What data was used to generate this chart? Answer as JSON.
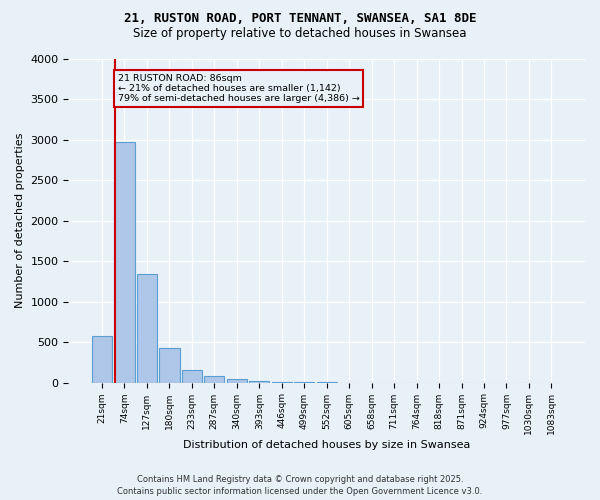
{
  "title_line1": "21, RUSTON ROAD, PORT TENNANT, SWANSEA, SA1 8DE",
  "title_line2": "Size of property relative to detached houses in Swansea",
  "xlabel": "Distribution of detached houses by size in Swansea",
  "ylabel": "Number of detached properties",
  "bar_values": [
    580,
    2970,
    1340,
    430,
    155,
    80,
    45,
    15,
    8,
    4,
    2,
    1,
    1,
    1,
    0,
    0,
    0,
    0,
    0,
    0,
    0
  ],
  "bar_labels": [
    "21sqm",
    "74sqm",
    "127sqm",
    "180sqm",
    "233sqm",
    "287sqm",
    "340sqm",
    "393sqm",
    "446sqm",
    "499sqm",
    "552sqm",
    "605sqm",
    "658sqm",
    "711sqm",
    "764sqm",
    "818sqm",
    "871sqm",
    "924sqm",
    "977sqm",
    "1030sqm",
    "1083sqm"
  ],
  "bar_color": "#aec6e8",
  "bar_edge_color": "#5a9fd4",
  "background_color": "#e8f0f8",
  "grid_color": "#ffffff",
  "annotation_box_color": "#cc0000",
  "red_line_x": 0.575,
  "annotation_text": "21 RUSTON ROAD: 86sqm\n← 21% of detached houses are smaller (1,142)\n79% of semi-detached houses are larger (4,386) →",
  "ylim": [
    0,
    4000
  ],
  "yticks": [
    0,
    500,
    1000,
    1500,
    2000,
    2500,
    3000,
    3500,
    4000
  ],
  "footer_line1": "Contains HM Land Registry data © Crown copyright and database right 2025.",
  "footer_line2": "Contains public sector information licensed under the Open Government Licence v3.0."
}
